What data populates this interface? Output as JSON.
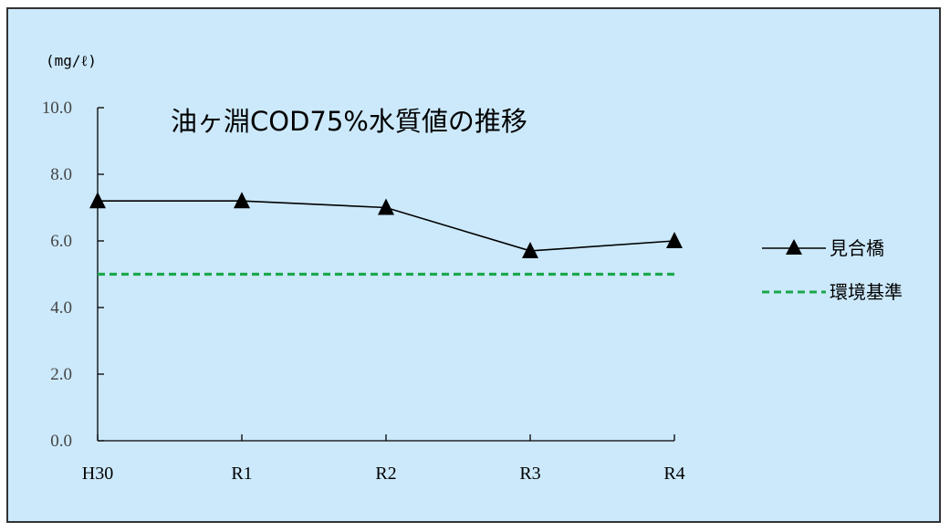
{
  "chart_data": {
    "type": "line",
    "title": "油ヶ淵COD75%水質値の推移",
    "unit_label": "(mg/ℓ)",
    "categories": [
      "H30",
      "R1",
      "R2",
      "R3",
      "R4"
    ],
    "ylim": [
      0,
      10
    ],
    "yticks": [
      "0.0",
      "2.0",
      "4.0",
      "6.0",
      "8.0",
      "10.0"
    ],
    "series": [
      {
        "name": "見合橋",
        "values": [
          7.2,
          7.2,
          7.0,
          5.7,
          6.0
        ],
        "color": "#000000",
        "marker": "triangle"
      },
      {
        "name": "環境基準",
        "values": [
          5.0,
          5.0,
          5.0,
          5.0,
          5.0
        ],
        "color": "#1aa84c",
        "style": "dashed"
      }
    ],
    "legend": "right",
    "grid": false,
    "background": "#cce9fb"
  }
}
